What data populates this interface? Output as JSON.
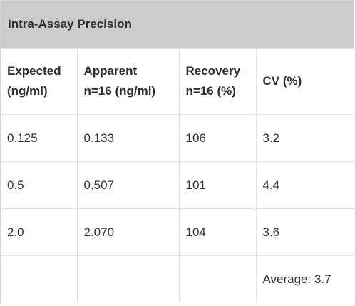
{
  "table": {
    "title": "Intra-Assay Precision",
    "headers": [
      {
        "line1": "Expected",
        "line2": "(ng/ml)"
      },
      {
        "line1": "Apparent",
        "line2": "n=16 (ng/ml)"
      },
      {
        "line1": "Recovery",
        "line2": "n=16 (%)"
      },
      {
        "line1": "CV (%)",
        "line2": ""
      }
    ],
    "rows": [
      [
        "0.125",
        "0.133",
        "106",
        "3.2"
      ],
      [
        "0.5",
        "0.507",
        "101",
        "4.4"
      ],
      [
        "2.0",
        "2.070",
        "104",
        "3.6"
      ],
      [
        "",
        "",
        "",
        "Average: 3.7"
      ]
    ]
  },
  "colors": {
    "title_background": "#cccccc",
    "border": "#e3e3e3",
    "text": "#333333"
  }
}
